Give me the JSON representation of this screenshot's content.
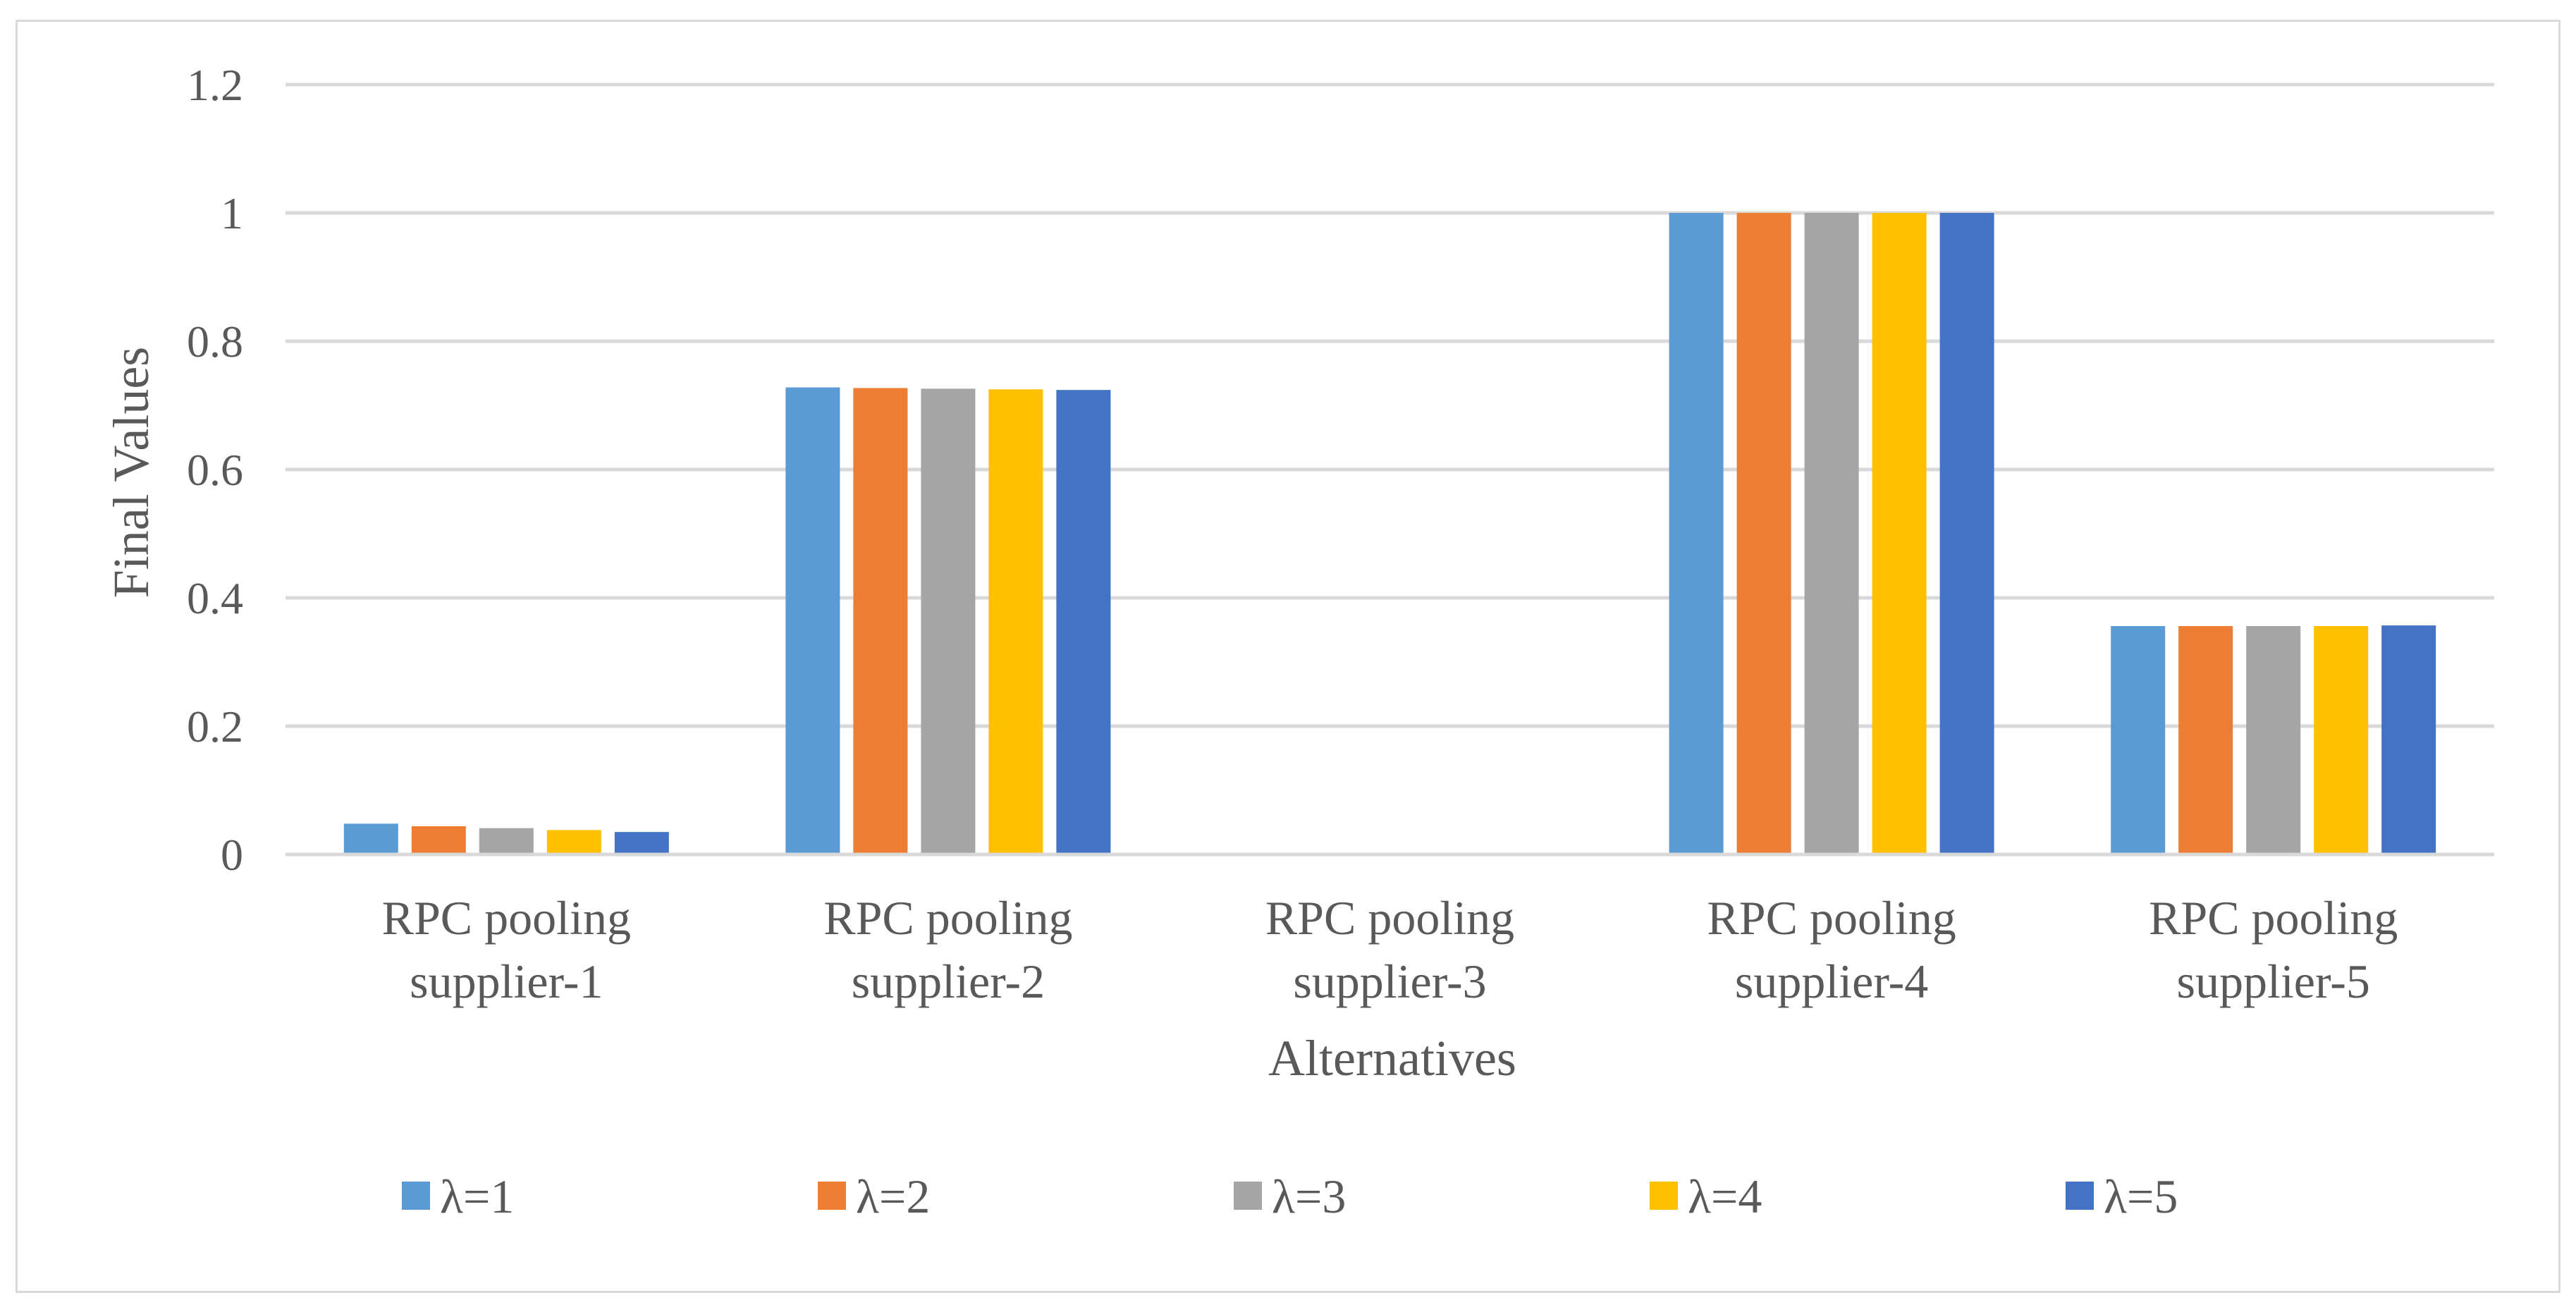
{
  "chart_data": {
    "type": "bar",
    "title": "",
    "xlabel": "Alternatives",
    "ylabel": "Final Values",
    "ylim": [
      0,
      1.2
    ],
    "yticks": [
      "0",
      "0.2",
      "0.4",
      "0.6",
      "0.8",
      "1",
      "1.2"
    ],
    "ytick_values": [
      0,
      0.2,
      0.4,
      0.6,
      0.8,
      1.0,
      1.2
    ],
    "grid": true,
    "legend_position": "bottom",
    "categories": [
      {
        "line1": "RPC pooling",
        "line2": "supplier-1"
      },
      {
        "line1": "RPC pooling",
        "line2": "supplier-2"
      },
      {
        "line1": "RPC pooling",
        "line2": "supplier-3"
      },
      {
        "line1": "RPC pooling",
        "line2": "supplier-4"
      },
      {
        "line1": "RPC pooling",
        "line2": "supplier-5"
      }
    ],
    "series": [
      {
        "name": "λ=1",
        "color": "#5B9BD5",
        "values": [
          0.048,
          0.728,
          0.0,
          1.0,
          0.356
        ]
      },
      {
        "name": "λ=2",
        "color": "#ED7D31",
        "values": [
          0.044,
          0.727,
          0.0,
          1.0,
          0.356
        ]
      },
      {
        "name": "λ=3",
        "color": "#A5A5A5",
        "values": [
          0.041,
          0.726,
          0.0,
          1.0,
          0.356
        ]
      },
      {
        "name": "λ=4",
        "color": "#FFC000",
        "values": [
          0.038,
          0.725,
          0.0,
          1.0,
          0.356
        ]
      },
      {
        "name": "λ=5",
        "color": "#4472C4",
        "values": [
          0.035,
          0.724,
          0.0,
          1.0,
          0.357
        ]
      }
    ],
    "gridline_color": "#d9d9d9"
  }
}
